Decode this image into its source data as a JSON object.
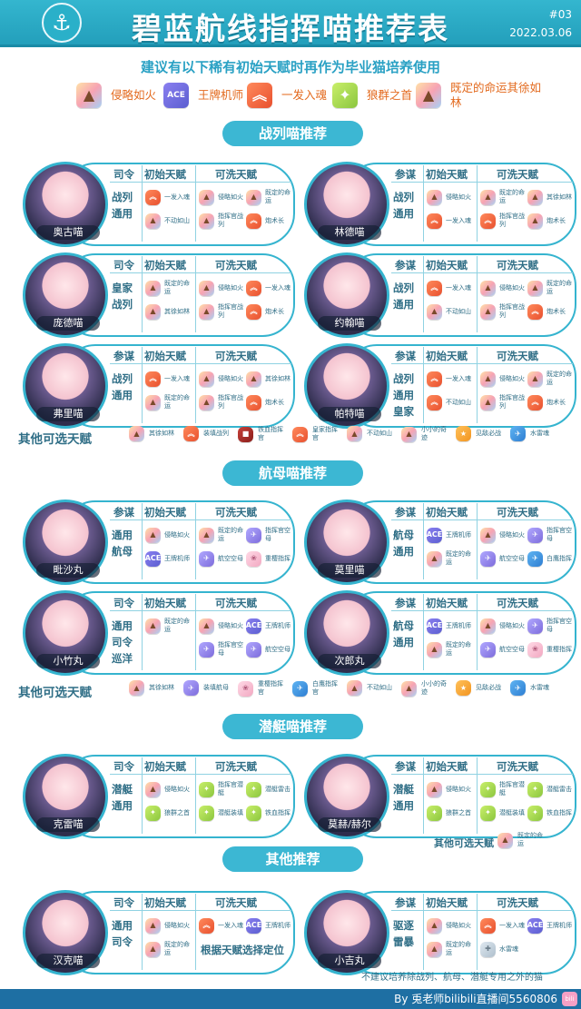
{
  "header": {
    "title": "碧蓝航线指挥喵推荐表",
    "issue": "#03",
    "date": "2022.03.06",
    "logo_icon": "anchor-icon"
  },
  "subtitle": "建议有以下稀有初始天赋时再作为毕业猫培养使用",
  "legend": [
    {
      "text": "侵略如火",
      "icon": "gold"
    },
    {
      "text": "王牌机师",
      "icon": "ace"
    },
    {
      "text": "一发入魂",
      "icon": "red"
    },
    {
      "text": "狼群之首",
      "icon": "green"
    },
    {
      "text": "既定的命运其徐如林",
      "icon": "gold"
    }
  ],
  "sections": {
    "battleship": "战列喵推荐",
    "carrier": "航母喵推荐",
    "sub": "潜艇喵推荐",
    "misc": "其他推荐"
  },
  "cols": {
    "init": "初始天赋",
    "wash": "可洗天赋"
  },
  "cards": [
    {
      "name": "奥古喵",
      "type": "司令",
      "role": "战列通用",
      "init": [
        [
          "red",
          "一发入魂"
        ],
        [
          "gold",
          "不动如山"
        ]
      ],
      "wash": [
        [
          "gold",
          "侵略如火"
        ],
        [
          "gold",
          "既定的命运"
        ],
        [
          "gold",
          "指挥官战列"
        ],
        [
          "red",
          "炮术长"
        ]
      ]
    },
    {
      "name": "林德喵",
      "type": "参谋",
      "role": "战列通用",
      "init": [
        [
          "gold",
          "侵略如火"
        ],
        [
          "red",
          "一发入魂"
        ]
      ],
      "wash": [
        [
          "gold",
          "既定的命运"
        ],
        [
          "gold",
          "其徐如林"
        ],
        [
          "red",
          "指挥官战列"
        ],
        [
          "gold",
          "炮术长"
        ]
      ]
    },
    {
      "name": "庞德喵",
      "type": "司令",
      "role": "皇家战列",
      "init": [
        [
          "gold",
          "既定的命运"
        ],
        [
          "gold",
          "其徐如林"
        ]
      ],
      "wash": [
        [
          "gold",
          "侵略如火"
        ],
        [
          "red",
          "一发入魂"
        ],
        [
          "gold",
          "指挥官战列"
        ],
        [
          "red",
          "炮术长"
        ]
      ]
    },
    {
      "name": "约翰喵",
      "type": "参谋",
      "role": "战列通用",
      "init": [
        [
          "red",
          "一发入魂"
        ],
        [
          "gold",
          "不动如山"
        ]
      ],
      "wash": [
        [
          "gold",
          "侵略如火"
        ],
        [
          "gold",
          "既定的命运"
        ],
        [
          "gold",
          "指挥官战列"
        ],
        [
          "red",
          "炮术长"
        ]
      ]
    },
    {
      "name": "弗里喵",
      "type": "参谋",
      "role": "战列通用",
      "init": [
        [
          "red",
          "一发入魂"
        ],
        [
          "gold",
          "既定的命运"
        ]
      ],
      "wash": [
        [
          "gold",
          "侵略如火"
        ],
        [
          "gold",
          "其徐如林"
        ],
        [
          "gold",
          "指挥官战列"
        ],
        [
          "red",
          "炮术长"
        ]
      ]
    },
    {
      "name": "帕特喵",
      "type": "参谋",
      "role": "战列通用皇家",
      "init": [
        [
          "red",
          "一发入魂"
        ],
        [
          "red",
          "不动如山"
        ]
      ],
      "wash": [
        [
          "gold",
          "侵略如火"
        ],
        [
          "gold",
          "既定的命运"
        ],
        [
          "gold",
          "指挥官战列"
        ],
        [
          "red",
          "炮术长"
        ]
      ]
    },
    {
      "name": "毗沙丸",
      "type": "参谋",
      "role": "通用航母",
      "init": [
        [
          "gold",
          "侵略如火"
        ],
        [
          "ace",
          "王牌机师"
        ]
      ],
      "wash": [
        [
          "gold",
          "既定的命运"
        ],
        [
          "purple",
          "指挥官空母"
        ],
        [
          "purple",
          "航空空母"
        ],
        [
          "pink",
          "重樱指挥"
        ]
      ]
    },
    {
      "name": "莫里喵",
      "type": "参谋",
      "role": "航母通用",
      "init": [
        [
          "ace",
          "王牌机师"
        ],
        [
          "gold",
          "既定的命运"
        ]
      ],
      "wash": [
        [
          "gold",
          "侵略如火"
        ],
        [
          "purple",
          "指挥官空母"
        ],
        [
          "purple",
          "航空空母"
        ],
        [
          "blue",
          "白鹰指挥"
        ]
      ]
    },
    {
      "name": "小竹丸",
      "type": "司令",
      "role": "通用司令巡洋",
      "init": [
        [
          "gold",
          "既定的命运"
        ]
      ],
      "wash": [
        [
          "gold",
          "侵略如火"
        ],
        [
          "ace",
          "王牌机师"
        ],
        [
          "purple",
          "指挥官空母"
        ],
        [
          "purple",
          "航空空母"
        ]
      ]
    },
    {
      "name": "次郎丸",
      "type": "参谋",
      "role": "航母通用",
      "init": [
        [
          "ace",
          "王牌机师"
        ],
        [
          "gold",
          "既定的命运"
        ]
      ],
      "wash": [
        [
          "gold",
          "侵略如火"
        ],
        [
          "purple",
          "指挥官空母"
        ],
        [
          "purple",
          "航空空母"
        ],
        [
          "pink",
          "重樱指挥"
        ]
      ]
    },
    {
      "name": "克雷喵",
      "type": "司令",
      "role": "潜艇通用",
      "init": [
        [
          "gold",
          "侵略如火"
        ],
        [
          "green",
          "狼群之首"
        ]
      ],
      "wash": [
        [
          "green",
          "指挥官潜艇"
        ],
        [
          "green",
          "潜艇雷击"
        ],
        [
          "green",
          "潜艇装填"
        ],
        [
          "green",
          "铁血指挥"
        ]
      ]
    },
    {
      "name": "莫赫/赫尔",
      "type": "参谋",
      "role": "潜艇通用",
      "init": [
        [
          "gold",
          "侵略如火"
        ],
        [
          "green",
          "狼群之首"
        ]
      ],
      "wash": [
        [
          "green",
          "指挥官潜艇"
        ],
        [
          "green",
          "潜艇雷击"
        ],
        [
          "green",
          "潜艇装填"
        ],
        [
          "green",
          "铁血指挥"
        ]
      ]
    },
    {
      "name": "汉克喵",
      "type": "司令",
      "role": "通用司令",
      "init": [
        [
          "gold",
          "侵略如火"
        ],
        [
          "gold",
          "既定的命运"
        ]
      ],
      "wash": [
        [
          "red",
          "一发入魂"
        ],
        [
          "ace",
          "王牌机师"
        ]
      ],
      "extra": "根据天赋选择定位"
    },
    {
      "name": "小吉丸",
      "type": "参谋",
      "role": "驱逐雷暴",
      "init": [
        [
          "gold",
          "侵略如火"
        ],
        [
          "gold",
          "既定的命运"
        ]
      ],
      "wash": [
        [
          "red",
          "一发入魂"
        ],
        [
          "ace",
          "王牌机师"
        ],
        [
          "gray",
          "水雷魂"
        ]
      ]
    }
  ],
  "other1": {
    "title": "其他可选天赋",
    "items": [
      [
        "gold",
        "其徐如林"
      ],
      [
        "red",
        "装填战列"
      ],
      [
        "darkred",
        "铁血指挥官"
      ],
      [
        "red",
        "皇家指挥官"
      ],
      [
        "gold",
        "不动如山"
      ],
      [
        "gold",
        "小小的奇迹"
      ],
      [
        "orange",
        "见敌必战"
      ],
      [
        "blue",
        "水雷魂"
      ]
    ]
  },
  "other2": {
    "title": "其他可选天赋",
    "items": [
      [
        "gold",
        "其徐如林"
      ],
      [
        "purple",
        "装填航母"
      ],
      [
        "pink",
        "重樱指挥官"
      ],
      [
        "blue",
        "白鹰指挥官"
      ],
      [
        "gold",
        "不动如山"
      ],
      [
        "gold",
        "小小的奇迹"
      ],
      [
        "orange",
        "见敌必战"
      ],
      [
        "blue",
        "水雷魂"
      ]
    ]
  },
  "sub_other": {
    "title": "其他可选天赋",
    "icon": "gold",
    "text": "既定的命运"
  },
  "note": "不建议培养除战列、航母、潜艇专用之外的猫",
  "footer": {
    "text": "By 兎老师bilibili直播间5560806",
    "badge": "bili"
  }
}
